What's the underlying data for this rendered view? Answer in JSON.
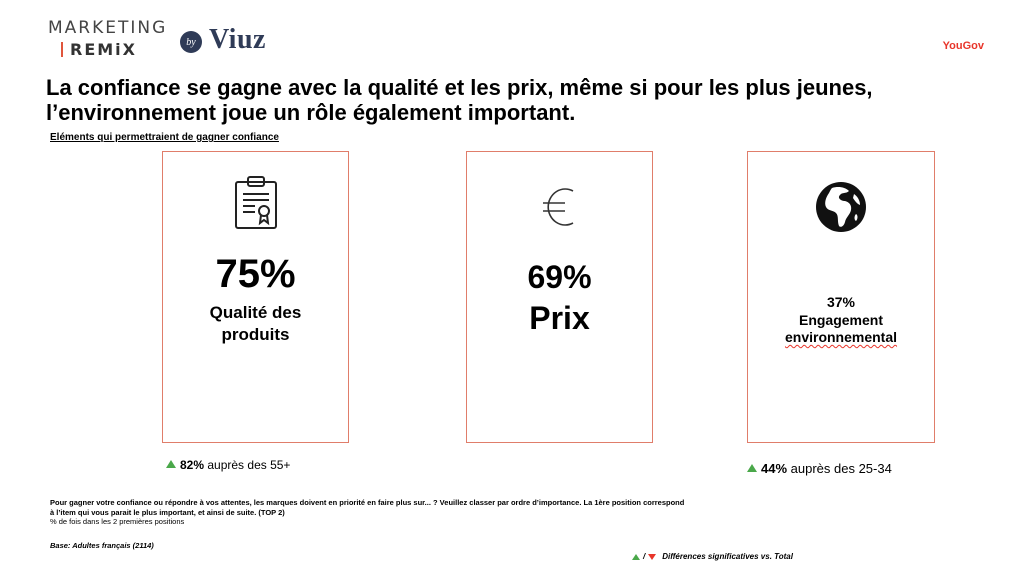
{
  "header": {
    "logo_marketing": "MARKETING",
    "logo_remix": "REMiX",
    "logo_by": "by",
    "logo_viuz": "Viuz",
    "brand_right": "YouGov"
  },
  "title": "La confiance se gagne avec la qualité et les prix, même si pour les plus jeunes, l’environnement joue un rôle également important.",
  "subtitle": "Eléments qui permettraient de gagner confiance",
  "cards": [
    {
      "icon": "certificate-icon",
      "percent": "75%",
      "label_line1": "Qualité des",
      "label_line2": "produits"
    },
    {
      "icon": "euro-icon",
      "percent": "69%",
      "label": "Prix"
    },
    {
      "icon": "globe-icon",
      "percent": "37%",
      "label_line1": "Engagement",
      "label_line2": "environnemental"
    }
  ],
  "notes": [
    {
      "value": "82%",
      "text": " auprès des 55+"
    },
    {
      "value": "44%",
      "text": " auprès des 25-34"
    }
  ],
  "question": {
    "line1": "Pour gagner votre confiance ou répondre à vos attentes, les marques doivent en priorité en faire plus sur... ? Veuillez classer par ordre d’importance. La 1ère position correspond à l’item qui vous parait le plus important, et ainsi de suite. (TOP 2)",
    "line2": "% de fois dans les 2 premières positions"
  },
  "base": "Base: Adultes français (2114)",
  "legend": {
    "separator": "/",
    "text": "Différences significatives vs. Total"
  },
  "colors": {
    "card_border": "#e07d6a",
    "up_arrow": "#4aa84a",
    "down_arrow": "#e8352a",
    "brand_red": "#e8352a",
    "viuz_navy": "#2f3b57"
  }
}
